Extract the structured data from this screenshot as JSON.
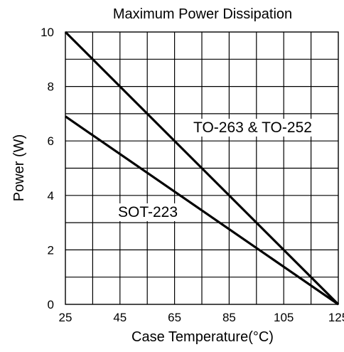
{
  "chart_data": {
    "type": "line",
    "title": "Maximum Power Dissipation",
    "xlabel": "Case Temperature(°C)",
    "ylabel": "Power (W)",
    "xlim": [
      25,
      125
    ],
    "ylim": [
      0,
      10
    ],
    "x_ticks": [
      25,
      45,
      65,
      85,
      105,
      125
    ],
    "y_ticks": [
      0,
      2,
      4,
      6,
      8,
      10
    ],
    "x_minor_step": 10,
    "y_minor_step": 1,
    "grid": true,
    "series": [
      {
        "name": "TO-263 & TO-252",
        "x": [
          25,
          125
        ],
        "y": [
          10,
          0
        ]
      },
      {
        "name": "SOT-223",
        "x": [
          25,
          125
        ],
        "y": [
          6.9,
          0
        ]
      }
    ],
    "annotations": [
      {
        "text": "TO-263 & TO-252",
        "series_index": 0
      },
      {
        "text": "SOT-223",
        "series_index": 1
      }
    ]
  }
}
